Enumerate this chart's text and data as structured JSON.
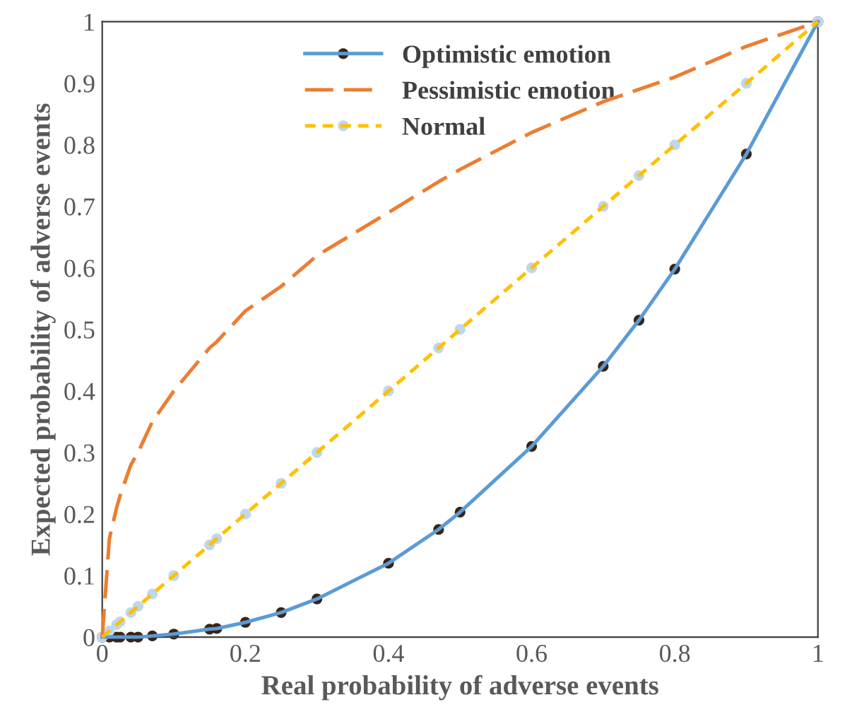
{
  "chart_data": {
    "type": "line",
    "xlabel": "Real probability of adverse events",
    "ylabel": "Expected probability of adverse events",
    "x": [
      0,
      0.01,
      0.02,
      0.025,
      0.04,
      0.05,
      0.07,
      0.1,
      0.15,
      0.16,
      0.2,
      0.25,
      0.3,
      0.4,
      0.47,
      0.5,
      0.6,
      0.7,
      0.75,
      0.8,
      0.9,
      1
    ],
    "series": [
      {
        "name": "Optimistic emotion",
        "color": "#5b9bd5",
        "marker": "circle",
        "line_style": "solid",
        "values": [
          0,
          0,
          0,
          0,
          0,
          0,
          0.002,
          0.005,
          0.013,
          0.014,
          0.024,
          0.04,
          0.062,
          0.12,
          0.175,
          0.203,
          0.31,
          0.44,
          0.515,
          0.598,
          0.785,
          1
        ]
      },
      {
        "name": "Pessimistic emotion",
        "color": "#ed7d31",
        "line_style": "dashed",
        "values": [
          0,
          0.16,
          0.21,
          0.23,
          0.28,
          0.3,
          0.35,
          0.4,
          0.47,
          0.48,
          0.53,
          0.57,
          0.62,
          0.69,
          0.74,
          0.76,
          0.82,
          0.87,
          0.89,
          0.91,
          0.96,
          1
        ]
      },
      {
        "name": "Normal",
        "color": "#ffc000",
        "marker": "circle",
        "line_style": "dotted",
        "values": [
          0,
          0.01,
          0.02,
          0.025,
          0.04,
          0.05,
          0.07,
          0.1,
          0.15,
          0.16,
          0.2,
          0.25,
          0.3,
          0.4,
          0.47,
          0.5,
          0.6,
          0.7,
          0.75,
          0.8,
          0.9,
          1
        ]
      }
    ],
    "xlim": [
      0,
      1
    ],
    "ylim": [
      0,
      1
    ],
    "xticks": [
      0,
      0.2,
      0.4,
      0.6,
      0.8,
      1
    ],
    "yticks": [
      0,
      0.1,
      0.2,
      0.3,
      0.4,
      0.5,
      0.6,
      0.7,
      0.8,
      0.9,
      1
    ],
    "grid": false,
    "legend": "top"
  }
}
